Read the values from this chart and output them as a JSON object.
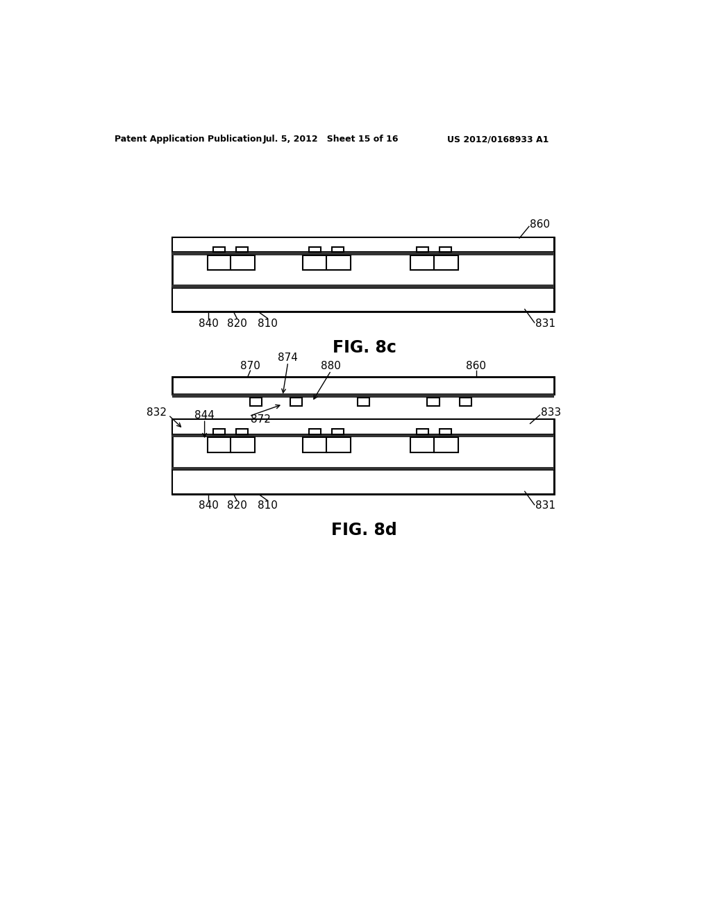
{
  "bg_color": "#ffffff",
  "header_left": "Patent Application Publication",
  "header_mid": "Jul. 5, 2012   Sheet 15 of 16",
  "header_right": "US 2012/0168933 A1",
  "fig8c_title": "FIG. 8c",
  "fig8d_title": "FIG. 8d"
}
